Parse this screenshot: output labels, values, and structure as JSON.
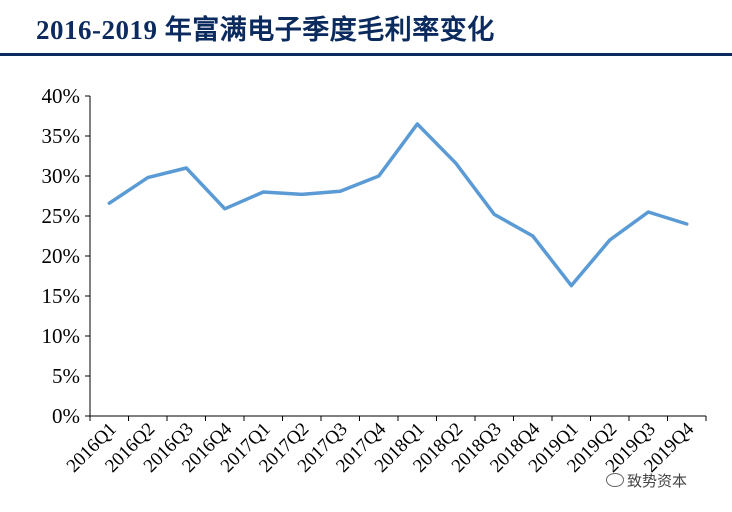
{
  "header": {
    "title": "2016-2019 年富满电子季度毛利率变化"
  },
  "watermark": {
    "text": "致势资本"
  },
  "colors": {
    "line": "#5b9bd5",
    "title": "#0b2a5e",
    "axis": "#000000"
  },
  "chart_data": {
    "type": "line",
    "title": "2016-2019 年富满电子季度毛利率变化",
    "xlabel": "",
    "ylabel": "",
    "ylim": [
      0,
      40
    ],
    "yticks": [
      "0%",
      "5%",
      "10%",
      "15%",
      "20%",
      "25%",
      "30%",
      "35%",
      "40%"
    ],
    "grid": false,
    "legend": "none",
    "categories": [
      "2016Q1",
      "2016Q2",
      "2016Q3",
      "2016Q4",
      "2017Q1",
      "2017Q2",
      "2017Q3",
      "2017Q4",
      "2018Q1",
      "2018Q2",
      "2018Q3",
      "2018Q4",
      "2019Q1",
      "2019Q2",
      "2019Q3",
      "2019Q4"
    ],
    "series": [
      {
        "values": [
          26.6,
          29.8,
          31.0,
          25.9,
          28.0,
          27.7,
          28.1,
          30.0,
          36.5,
          31.6,
          25.2,
          22.5,
          16.3,
          22.0,
          25.5,
          24.0
        ]
      }
    ]
  }
}
